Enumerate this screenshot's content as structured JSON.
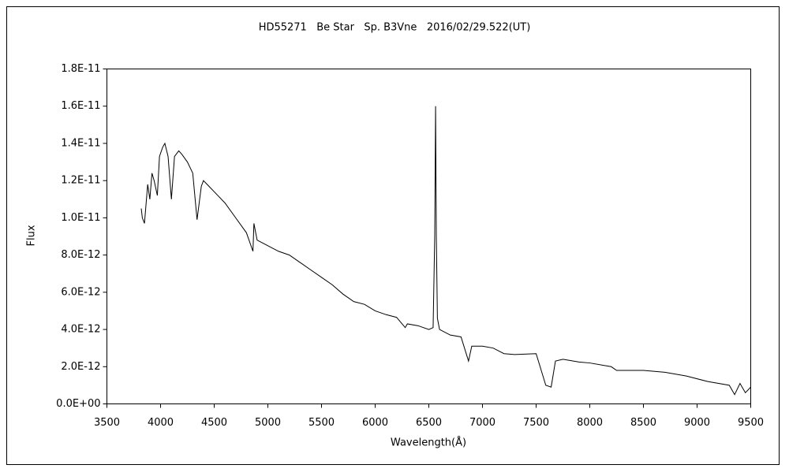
{
  "chart_data": {
    "type": "line",
    "title": "HD55271   Be Star   Sp. B3Vne   2016/02/29.522(UT)",
    "x_label": "Wavelength(Å)",
    "y_label": "Flux",
    "grid": false,
    "xlim": [
      3500,
      9500
    ],
    "xticks": [
      3500,
      4000,
      4500,
      5000,
      5500,
      6000,
      6500,
      7000,
      7500,
      8000,
      8500,
      9000,
      9500
    ],
    "ylim": [
      0,
      1.8e-11
    ],
    "yticks": [
      {
        "value": 0,
        "label": "0.0E+00"
      },
      {
        "value": 2e-12,
        "label": "2.0E-12"
      },
      {
        "value": 4e-12,
        "label": "4.0E-12"
      },
      {
        "value": 6e-12,
        "label": "6.0E-12"
      },
      {
        "value": 8e-12,
        "label": "8.0E-12"
      },
      {
        "value": 1e-11,
        "label": "1.0E-11"
      },
      {
        "value": 1.2e-11,
        "label": "1.2E-11"
      },
      {
        "value": 1.4e-11,
        "label": "1.4E-11"
      },
      {
        "value": 1.6e-11,
        "label": "1.6E-11"
      },
      {
        "value": 1.8e-11,
        "label": "1.8E-11"
      }
    ],
    "series": [
      {
        "color": "#000000",
        "x": [
          3820,
          3830,
          3850,
          3880,
          3900,
          3920,
          3940,
          3970,
          3990,
          4020,
          4040,
          4070,
          4101,
          4130,
          4170,
          4200,
          4250,
          4300,
          4340,
          4380,
          4400,
          4450,
          4500,
          4600,
          4700,
          4800,
          4861,
          4870,
          4900,
          5000,
          5100,
          5200,
          5300,
          5400,
          5500,
          5600,
          5700,
          5800,
          5900,
          6000,
          6100,
          6200,
          6280,
          6300,
          6400,
          6500,
          6540,
          6555,
          6563,
          6570,
          6580,
          6600,
          6700,
          6800,
          6870,
          6900,
          7000,
          7100,
          7200,
          7300,
          7500,
          7590,
          7640,
          7680,
          7750,
          7900,
          8000,
          8200,
          8250,
          8500,
          8700,
          8900,
          9100,
          9300,
          9350,
          9400,
          9450,
          9500
        ],
        "values": [
          1.05e-11,
          1e-11,
          9.7e-12,
          1.18e-11,
          1.1e-11,
          1.24e-11,
          1.2e-11,
          1.12e-11,
          1.33e-11,
          1.38e-11,
          1.4e-11,
          1.33e-11,
          1.1e-11,
          1.33e-11,
          1.36e-11,
          1.34e-11,
          1.3e-11,
          1.24e-11,
          9.9e-12,
          1.17e-11,
          1.2e-11,
          1.17e-11,
          1.14e-11,
          1.08e-11,
          1e-11,
          9.2e-12,
          8.2e-12,
          9.7e-12,
          8.8e-12,
          8.5e-12,
          8.2e-12,
          8e-12,
          7.6e-12,
          7.2e-12,
          6.8e-12,
          6.4e-12,
          5.9e-12,
          5.5e-12,
          5.35e-12,
          5e-12,
          4.8e-12,
          4.65e-12,
          4.1e-12,
          4.3e-12,
          4.2e-12,
          4e-12,
          4.1e-12,
          9e-12,
          1.6e-11,
          9e-12,
          4.6e-12,
          4e-12,
          3.7e-12,
          3.6e-12,
          2.3e-12,
          3.1e-12,
          3.1e-12,
          3e-12,
          2.7e-12,
          2.65e-12,
          2.7e-12,
          1e-12,
          9e-13,
          2.3e-12,
          2.4e-12,
          2.25e-12,
          2.2e-12,
          2e-12,
          1.8e-12,
          1.8e-12,
          1.7e-12,
          1.5e-12,
          1.2e-12,
          1e-12,
          5e-13,
          1.1e-12,
          6e-13,
          9e-13
        ]
      }
    ]
  }
}
